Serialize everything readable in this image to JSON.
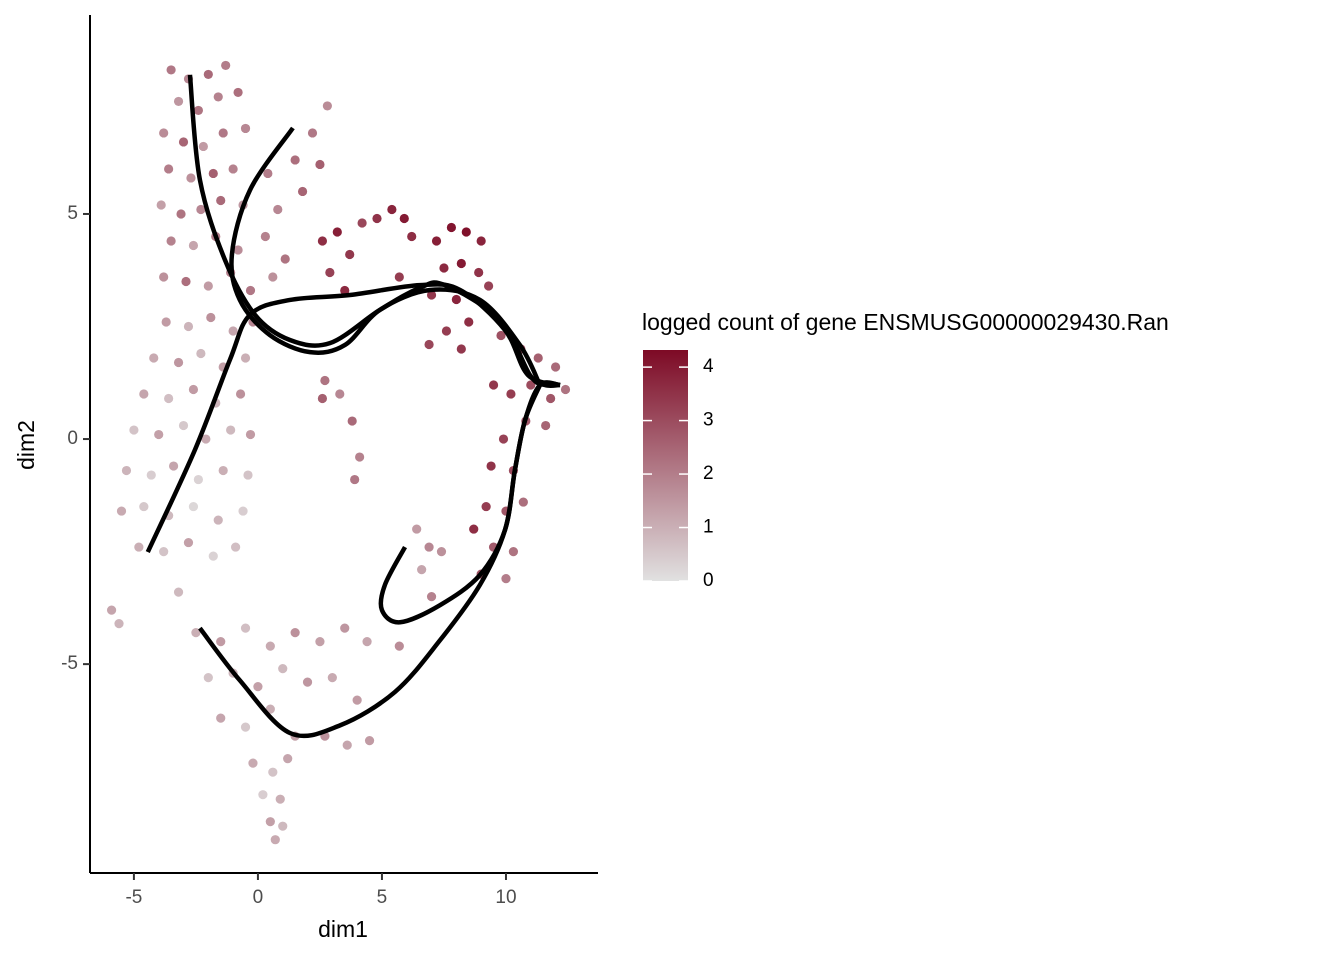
{
  "chart_data": {
    "type": "scatter",
    "xlabel": "dim1",
    "ylabel": "dim2",
    "xlim": [
      -6.77,
      13.71
    ],
    "ylim": [
      -9.64,
      9.42
    ],
    "xticks": [
      -5,
      0,
      5,
      10
    ],
    "yticks": [
      -5,
      0,
      5
    ],
    "point_radius": 4.6,
    "x": [
      -3.5,
      -2.8,
      -2.0,
      -1.3,
      -3.2,
      -2.4,
      -1.6,
      -0.8,
      -3.8,
      -3.0,
      -2.2,
      -1.4,
      -0.5,
      -3.6,
      -2.7,
      -1.8,
      -1.0,
      -3.9,
      -3.1,
      -2.3,
      -1.5,
      -0.6,
      -3.5,
      -2.6,
      -1.7,
      -0.8,
      -3.8,
      -2.9,
      -2.0,
      -1.1,
      -0.3,
      -3.7,
      -2.8,
      -1.9,
      -1.0,
      -0.2,
      -4.2,
      -3.2,
      -2.3,
      -1.4,
      -0.5,
      -4.6,
      -3.6,
      -2.6,
      -1.7,
      -0.7,
      -5.0,
      -4.0,
      -3.0,
      -2.1,
      -1.1,
      -0.3,
      -5.3,
      -4.3,
      -3.4,
      -2.4,
      -1.4,
      -0.4,
      -5.5,
      -4.6,
      -3.6,
      -2.6,
      -1.6,
      -0.6,
      -4.8,
      -3.8,
      -2.8,
      -1.8,
      -0.9,
      -5.9,
      -5.6,
      -3.2,
      0.4,
      0.8,
      1.5,
      2.2,
      2.8,
      0.3,
      1.1,
      1.8,
      2.5,
      0.6,
      2.6,
      3.2,
      3.7,
      2.9,
      3.5,
      4.2,
      4.8,
      5.4,
      5.9,
      6.2,
      5.7,
      7.2,
      7.8,
      8.4,
      9.0,
      7.5,
      8.2,
      8.9,
      7.0,
      8.0,
      9.3,
      7.6,
      8.5,
      6.9,
      8.2,
      9.8,
      10.6,
      11.3,
      12.0,
      12.4,
      11.8,
      11.0,
      10.2,
      9.5,
      10.8,
      11.6,
      9.9,
      9.4,
      10.3,
      9.2,
      10.0,
      10.7,
      9.5,
      10.3,
      9.0,
      10.0,
      8.7,
      2.7,
      3.3,
      3.8,
      2.6,
      4.1,
      3.9,
      6.4,
      6.9,
      6.6,
      7.4,
      7.0,
      -2.5,
      -1.5,
      -0.5,
      0.5,
      1.5,
      2.5,
      3.5,
      4.4,
      5.7,
      -2.0,
      -1.0,
      0.0,
      1.0,
      2.0,
      3.0,
      4.0,
      -1.5,
      -0.5,
      0.5,
      1.5,
      2.7,
      3.6,
      4.5,
      -0.2,
      0.6,
      1.2,
      0.2,
      0.9,
      0.5,
      1.0,
      0.7
    ],
    "y": [
      8.2,
      8.0,
      8.1,
      8.3,
      7.5,
      7.3,
      7.6,
      7.7,
      6.8,
      6.6,
      6.5,
      6.8,
      6.9,
      6.0,
      5.8,
      5.9,
      6.0,
      5.2,
      5.0,
      5.1,
      5.3,
      5.2,
      4.4,
      4.3,
      4.5,
      4.2,
      3.6,
      3.5,
      3.4,
      3.7,
      3.3,
      2.6,
      2.5,
      2.7,
      2.4,
      2.6,
      1.8,
      1.7,
      1.9,
      1.6,
      1.8,
      1.0,
      0.9,
      1.1,
      0.8,
      1.0,
      0.2,
      0.1,
      0.3,
      0.0,
      0.2,
      0.1,
      -0.7,
      -0.8,
      -0.6,
      -0.9,
      -0.7,
      -0.8,
      -1.6,
      -1.5,
      -1.7,
      -1.5,
      -1.8,
      -1.6,
      -2.4,
      -2.5,
      -2.3,
      -2.6,
      -2.4,
      -3.8,
      -4.1,
      -3.4,
      5.9,
      5.1,
      6.2,
      6.8,
      7.4,
      4.5,
      4.0,
      5.5,
      6.1,
      3.6,
      4.4,
      4.6,
      4.1,
      3.7,
      3.3,
      4.8,
      4.9,
      5.1,
      4.9,
      4.5,
      3.6,
      4.4,
      4.7,
      4.6,
      4.4,
      3.8,
      3.9,
      3.7,
      3.2,
      3.1,
      3.4,
      2.4,
      2.6,
      2.1,
      2.0,
      2.3,
      2.0,
      1.8,
      1.6,
      1.1,
      0.9,
      1.2,
      1.0,
      1.2,
      0.4,
      0.3,
      0.0,
      -0.6,
      -0.7,
      -1.5,
      -1.6,
      -1.4,
      -2.4,
      -2.5,
      -3.0,
      -3.1,
      -2.0,
      1.3,
      1.0,
      0.4,
      0.9,
      -0.4,
      -0.9,
      -2.0,
      -2.4,
      -2.9,
      -2.5,
      -3.5,
      -4.3,
      -4.5,
      -4.2,
      -4.6,
      -4.3,
      -4.5,
      -4.2,
      -4.5,
      -4.6,
      -5.3,
      -5.2,
      -5.5,
      -5.1,
      -5.4,
      -5.3,
      -5.8,
      -6.2,
      -6.4,
      -6.0,
      -6.6,
      -6.6,
      -6.8,
      -6.7,
      -7.2,
      -7.4,
      -7.1,
      -7.9,
      -8.0,
      -8.5,
      -8.6,
      -8.9
    ],
    "color_values": [
      2.1,
      1.8,
      2.4,
      2.0,
      1.5,
      2.2,
      1.9,
      2.3,
      1.7,
      2.5,
      1.4,
      2.1,
      1.8,
      2.0,
      1.6,
      2.6,
      1.9,
      1.3,
      2.2,
      1.8,
      2.4,
      1.5,
      1.9,
      1.2,
      2.0,
      1.7,
      1.6,
      2.3,
      1.4,
      1.9,
      2.1,
      1.4,
      0.9,
      1.6,
      1.2,
      1.8,
      1.1,
      1.5,
      0.8,
      1.3,
      1.0,
      1.2,
      0.7,
      1.4,
      0.9,
      1.6,
      0.6,
      1.3,
      0.5,
      1.1,
      0.8,
      1.4,
      0.9,
      0.4,
      1.2,
      0.3,
      1.0,
      0.6,
      1.1,
      0.5,
      0.8,
      0.2,
      0.9,
      0.4,
      1.0,
      0.6,
      1.3,
      0.3,
      0.7,
      1.2,
      0.9,
      0.8,
      2.0,
      1.8,
      2.3,
      2.1,
      1.7,
      1.9,
      2.2,
      2.5,
      2.6,
      1.6,
      3.6,
      3.9,
      3.4,
      3.2,
      3.7,
      3.1,
      3.5,
      3.8,
      4.0,
      3.6,
      3.3,
      3.9,
      4.1,
      4.2,
      3.8,
      3.7,
      4.0,
      3.5,
      3.4,
      3.8,
      3.2,
      3.3,
      3.6,
      3.1,
      3.4,
      2.9,
      3.1,
      2.6,
      2.4,
      2.2,
      2.8,
      3.0,
      3.3,
      3.4,
      2.7,
      2.5,
      3.2,
      3.5,
      3.0,
      3.3,
      2.8,
      2.3,
      2.7,
      2.2,
      2.9,
      2.0,
      3.6,
      2.2,
      1.8,
      2.4,
      2.6,
      1.9,
      2.1,
      1.4,
      1.8,
      1.2,
      1.6,
      1.9,
      1.0,
      1.4,
      0.7,
      1.1,
      1.6,
      1.3,
      1.5,
      1.2,
      1.7,
      0.6,
      0.9,
      1.3,
      0.8,
      1.5,
      1.1,
      1.4,
      1.2,
      0.5,
      1.0,
      1.3,
      1.6,
      1.2,
      1.4,
      1.1,
      0.6,
      1.2,
      0.4,
      1.0,
      1.3,
      0.8,
      1.1
    ],
    "colorbar": {
      "title": "logged count of gene ENSMUSG00000029430.Ran",
      "lim": [
        0,
        4.32
      ],
      "ticks": [
        0,
        1,
        2,
        3,
        4
      ],
      "colors": [
        "#e1e1e1",
        "#7d0a25"
      ]
    },
    "curve_color": "#000000",
    "curves": [
      {
        "x": [
          -2.74,
          -2.34,
          -1.33,
          -0.12,
          1.29,
          2.9,
          4.92,
          6.53,
          7.54,
          9.76,
          10.97,
          11.57,
          12.18
        ],
        "y": [
          8.09,
          5.76,
          3.98,
          2.76,
          2.2,
          2.13,
          2.87,
          3.36,
          3.42,
          2.64,
          1.42,
          1.2,
          1.2
        ]
      },
      {
        "x": [
          1.41,
          -0.32,
          -1.05,
          -0.73,
          0.48,
          2.1,
          3.51,
          4.92,
          6.94,
          8.95,
          10.56,
          11.37
        ],
        "y": [
          6.91,
          5.53,
          4.09,
          3.09,
          2.31,
          1.93,
          2.09,
          2.87,
          3.31,
          3.09,
          2.09,
          1.2
        ]
      },
      {
        "x": [
          -4.44,
          -2.54,
          -1.13,
          -0.32,
          1.29,
          3.71,
          6.53,
          8.15,
          9.96,
          10.89,
          12.18
        ],
        "y": [
          -2.51,
          -0.24,
          1.76,
          2.76,
          3.09,
          3.2,
          3.42,
          3.31,
          2.42,
          1.42,
          1.2
        ]
      },
      {
        "x": [
          11.37,
          10.77,
          10.36,
          9.96,
          8.95,
          7.34,
          5.73,
          5.0,
          5.12,
          5.93
        ],
        "y": [
          1.2,
          0.42,
          -0.69,
          -2.02,
          -3.02,
          -3.69,
          -4.07,
          -3.8,
          -3.24,
          -2.4
        ]
      },
      {
        "x": [
          -2.34,
          -0.73,
          1.29,
          3.31,
          5.52,
          7.34,
          8.95,
          9.96,
          10.36,
          10.77,
          11.37,
          12.18
        ],
        "y": [
          -4.2,
          -5.36,
          -6.53,
          -6.36,
          -5.62,
          -4.47,
          -3.24,
          -2.02,
          -0.69,
          0.42,
          1.2,
          1.2
        ]
      }
    ]
  }
}
